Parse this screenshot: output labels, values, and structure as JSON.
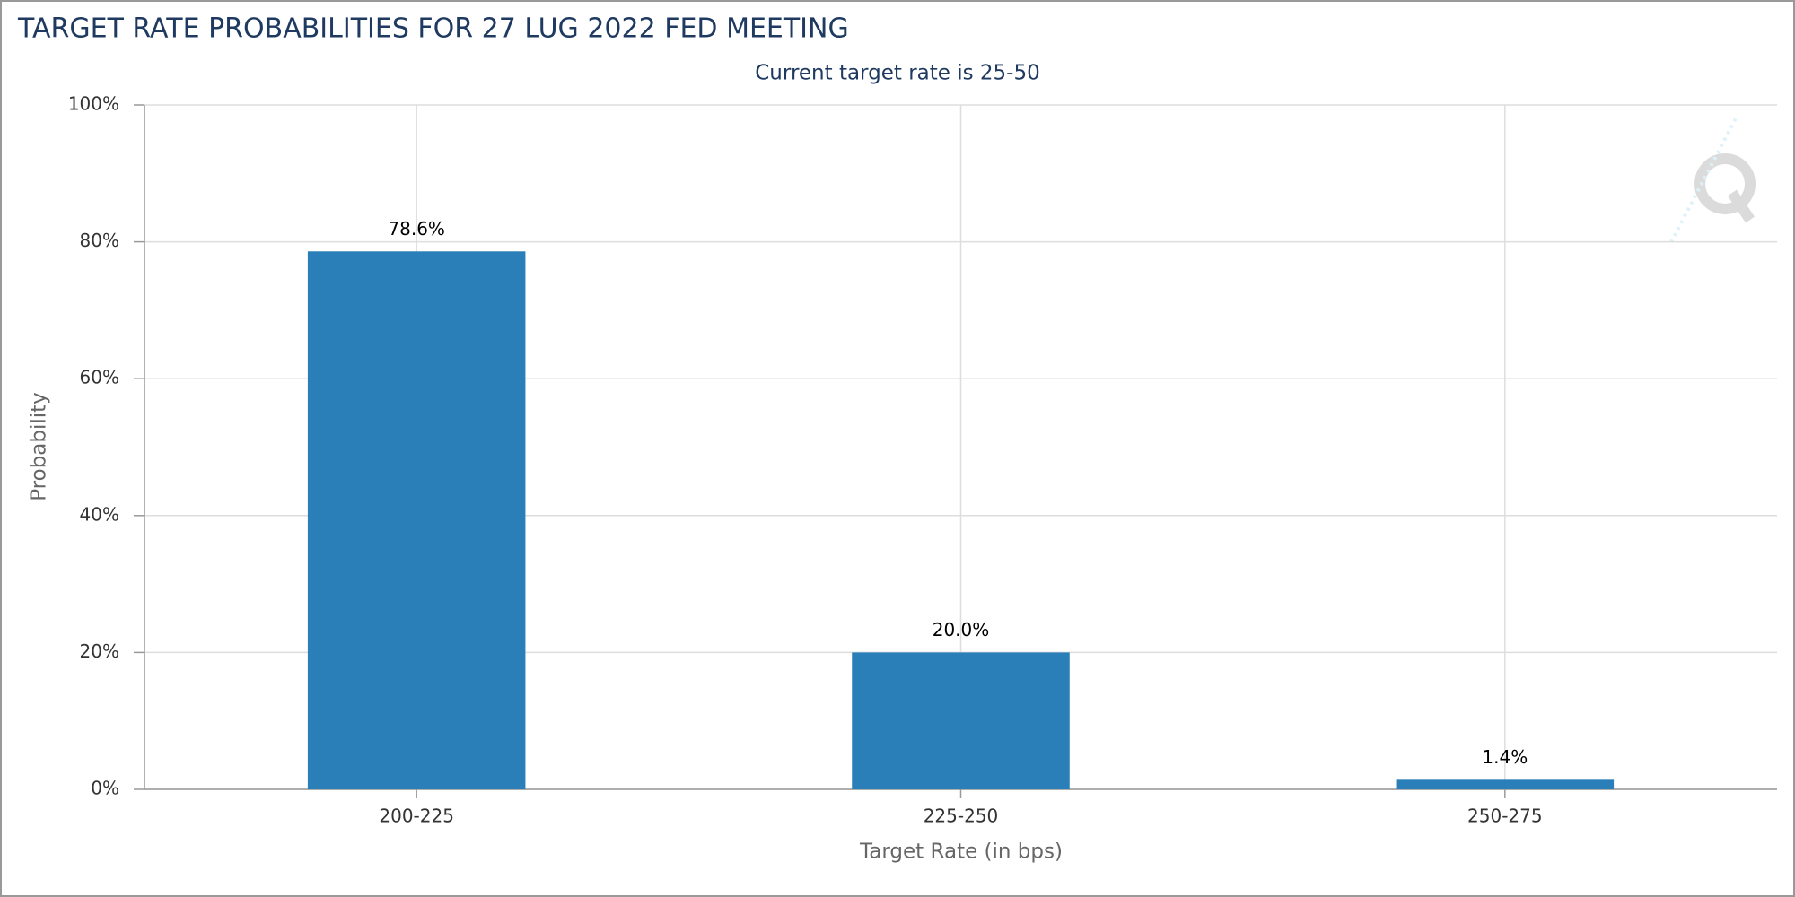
{
  "chart_data": {
    "type": "bar",
    "title": "TARGET RATE PROBABILITIES FOR 27 LUG 2022 FED MEETING",
    "subtitle": "Current target rate is 25-50",
    "y_label": "Probability",
    "x_label": "Target Rate (in bps)",
    "categories": [
      "200-225",
      "225-250",
      "250-275"
    ],
    "values": [
      78.6,
      20.0,
      1.4
    ],
    "value_labels": [
      "78.6%",
      "20.0%",
      "1.4%"
    ],
    "color": "#2a7fb8",
    "ylim": [
      0,
      100
    ],
    "yticks": [
      {
        "value": 0,
        "label": "0%"
      },
      {
        "value": 20,
        "label": "20%"
      },
      {
        "value": 40,
        "label": "40%"
      },
      {
        "value": 60,
        "label": "60%"
      },
      {
        "value": 80,
        "label": "80%"
      },
      {
        "value": 100,
        "label": "100%"
      }
    ],
    "grid": true
  }
}
